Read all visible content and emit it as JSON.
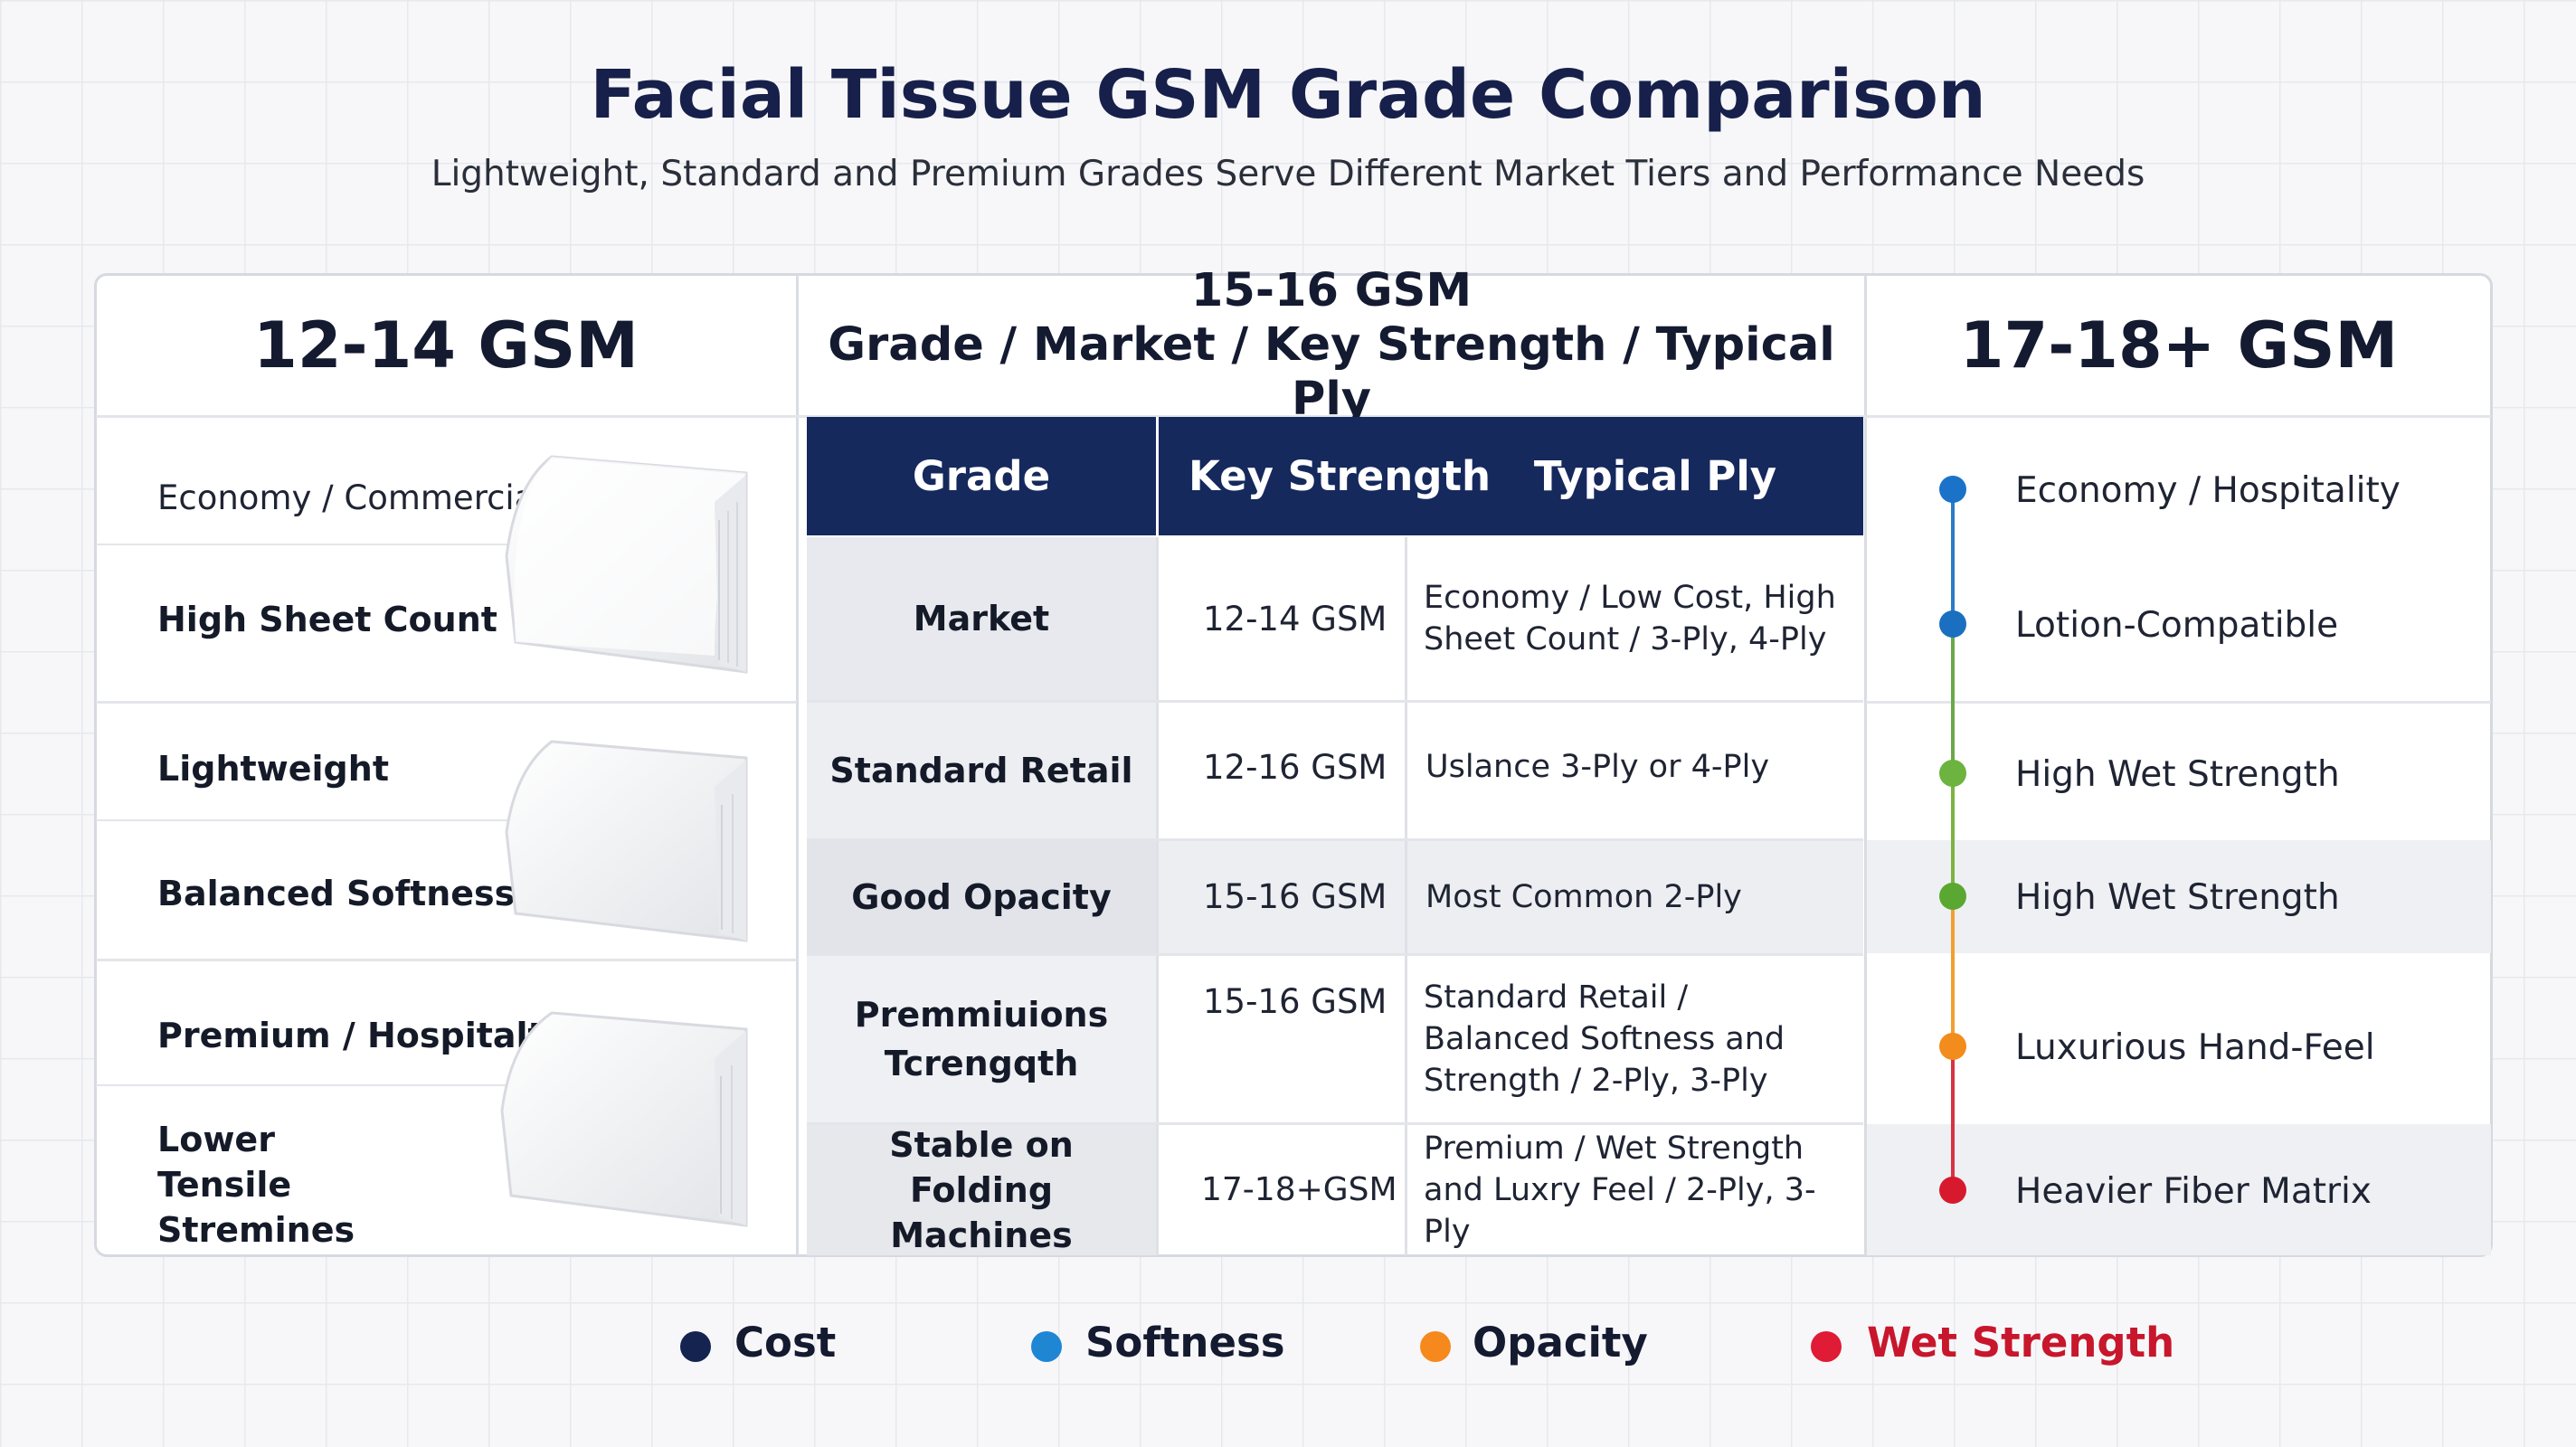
{
  "header": {
    "title": "Facial Tissue GSM Grade Comparison",
    "subtitle": "Lightweight, Standard and Premium Grades Serve Different Market Tiers and Performance Needs"
  },
  "left": {
    "heading": "12-14 GSM",
    "items": [
      "Economy / Commercial",
      "High Sheet Count",
      "Lightweight",
      "Balanced Softness",
      "Premium / Hospitalty",
      "Lower Tensile Stremines"
    ]
  },
  "middle": {
    "heading_line1": "15-16 GSM",
    "heading_line2": "Grade / Market / Key Strength / Typical Ply",
    "columns": [
      "Grade",
      "Key Strength",
      "Typical Ply"
    ],
    "rows": [
      {
        "grade": "Market",
        "gsm": "12-14 GSM",
        "ply": "Economy / Low Cost, High Sheet Count / 3-Ply, 4-Ply"
      },
      {
        "grade": "Standard Retail",
        "gsm": "12-16 GSM",
        "ply": "Uslance 3-Ply or 4-Ply"
      },
      {
        "grade": "Good Opacity",
        "gsm": "15-16 GSM",
        "ply": "Most Common 2-Ply"
      },
      {
        "grade": "Premmiuions Tcrengqth",
        "gsm": "15-16 GSM",
        "ply": "Standard Retail / Balanced Softness and Strength / 2-Ply, 3-Ply"
      },
      {
        "grade": "Stable on Folding Machines",
        "gsm": "17-18+GSM",
        "ply": "Premium / Wet Strength and Luxry Feel / 2-Ply, 3-Ply"
      }
    ]
  },
  "right": {
    "heading": "17-18+ GSM",
    "items": [
      {
        "label": "Economy / Hospitality",
        "color": "#1a73c8"
      },
      {
        "label": "Lotion-Compatible",
        "color": "#1a6fc0"
      },
      {
        "label": "High Wet Strength",
        "color": "#6cb33f"
      },
      {
        "label": "High Wet Strength",
        "color": "#5aa832"
      },
      {
        "label": "Luxurious Hand-Feel",
        "color": "#f28c1c"
      },
      {
        "label": "Heavier Fiber Matrix",
        "color": "#d7192e"
      }
    ]
  },
  "legend": [
    {
      "label": "Cost",
      "color": "#14234f"
    },
    {
      "label": "Softness",
      "color": "#1f86d4"
    },
    {
      "label": "Opacity",
      "color": "#f5891d"
    },
    {
      "label": "Wet Strength",
      "color": "#e01b36"
    }
  ]
}
